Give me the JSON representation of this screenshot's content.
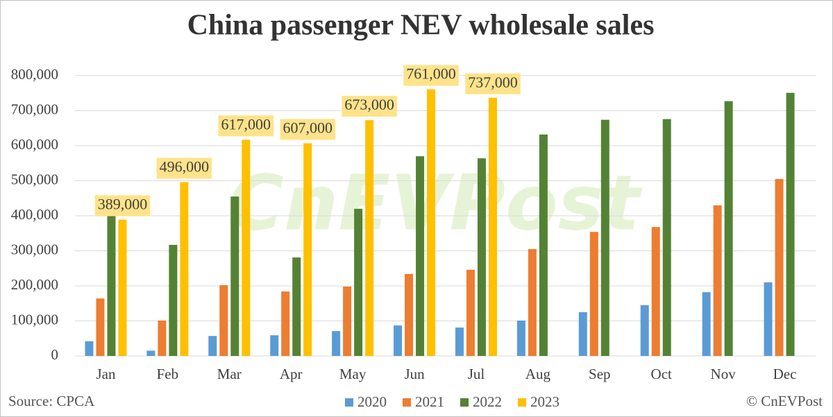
{
  "chart_data": {
    "type": "bar",
    "title": "China passenger NEV wholesale sales",
    "source": "Source: CPCA",
    "credit": "© CnEVPost",
    "watermark": "CnEVPost",
    "categories": [
      "Jan",
      "Feb",
      "Mar",
      "Apr",
      "May",
      "Jun",
      "Jul",
      "Aug",
      "Sep",
      "Oct",
      "Nov",
      "Dec"
    ],
    "series": [
      {
        "name": "2020",
        "color": "#5b9bd5",
        "values": [
          42000,
          15000,
          57000,
          59000,
          71000,
          87000,
          81000,
          101000,
          125000,
          145000,
          182000,
          210000
        ]
      },
      {
        "name": "2021",
        "color": "#ed7d31",
        "values": [
          164000,
          101000,
          202000,
          184000,
          198000,
          234000,
          246000,
          305000,
          354000,
          368000,
          430000,
          505000
        ]
      },
      {
        "name": "2022",
        "color": "#548235",
        "values": [
          406000,
          317000,
          455000,
          281000,
          420000,
          570000,
          564000,
          632000,
          674000,
          676000,
          727000,
          751000
        ]
      },
      {
        "name": "2023",
        "color": "#ffc000",
        "values": [
          389000,
          496000,
          617000,
          607000,
          673000,
          761000,
          737000,
          null,
          null,
          null,
          null,
          null
        ],
        "value_labels": [
          "389,000",
          "496,000",
          "617,000",
          "607,000",
          "673,000",
          "761,000",
          "737,000",
          null,
          null,
          null,
          null,
          null
        ]
      }
    ],
    "ylim": [
      0,
      800000
    ],
    "yticks": [
      0,
      {
        "value": 100000,
        "label": "100,000"
      },
      {
        "value": 200000,
        "label": "200,000"
      },
      {
        "value": 300000,
        "label": "300,000"
      },
      {
        "value": 400000,
        "label": "400,000"
      },
      {
        "value": 500000,
        "label": "500,000"
      },
      {
        "value": 600000,
        "label": "600,000"
      },
      {
        "value": 700000,
        "label": "700,000"
      },
      {
        "value": 800000,
        "label": "800,000"
      }
    ],
    "grid": true
  }
}
